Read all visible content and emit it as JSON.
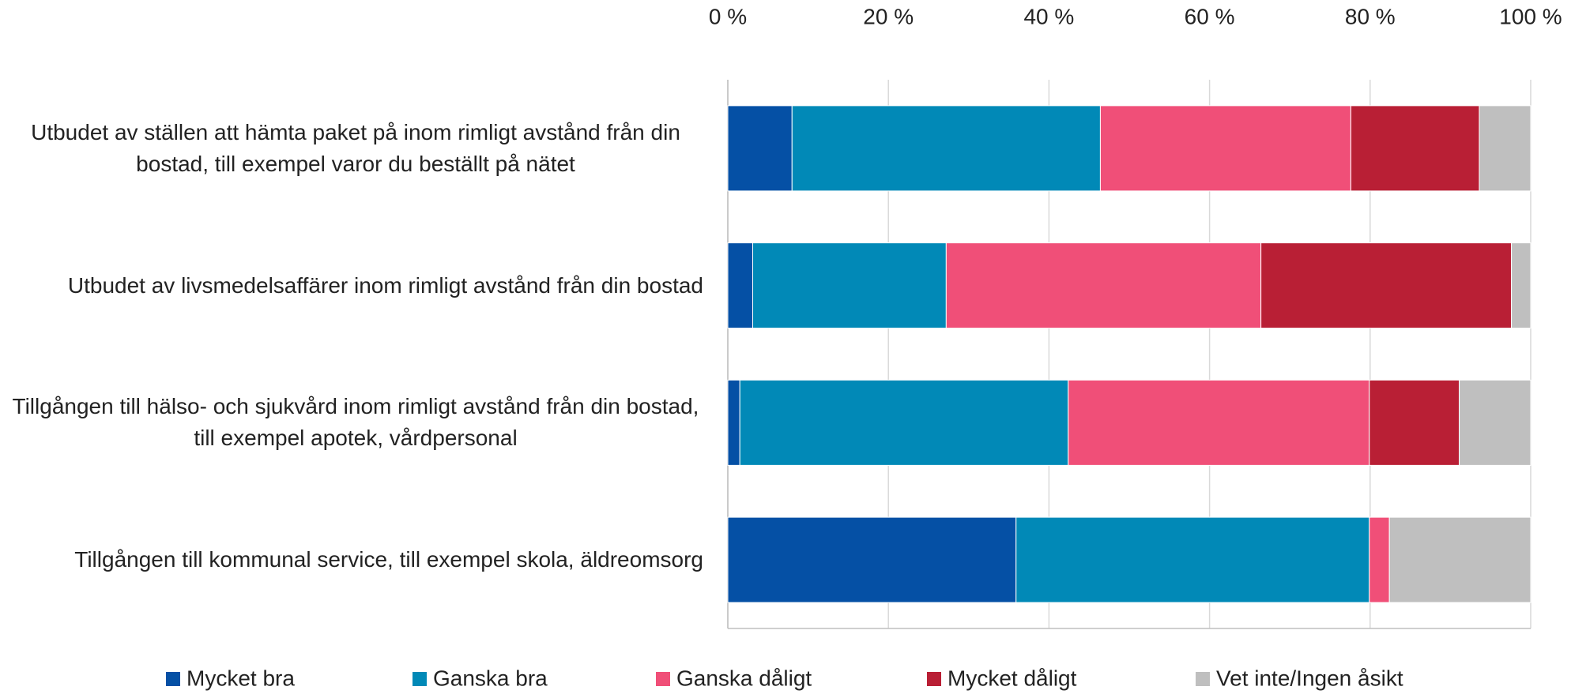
{
  "chart_data": {
    "type": "stacked-barh",
    "categories": [
      "Utbudet av ställen att hämta paket på inom rimligt avstånd från din bostad, till exempel varor du beställt på nätet",
      "Utbudet av livsmedelsaffärer inom rimligt avstånd från din bostad",
      "Tillgången till hälso- och sjukvård inom rimligt avstånd från din bostad, till exempel apotek, vårdpersonal",
      "Tillgången till kommunal service, till exempel skola, äldreomsorg"
    ],
    "series": [
      {
        "name": "Mycket bra",
        "color": "#0550a5",
        "values": [
          8,
          3.1,
          1.5,
          35.9
        ]
      },
      {
        "name": "Ganska bra",
        "color": "#0189b7",
        "values": [
          38.4,
          24.1,
          40.9,
          44.0
        ]
      },
      {
        "name": "Ganska dåligt",
        "color": "#f04f78",
        "values": [
          31.2,
          39.2,
          37.5,
          2.5
        ]
      },
      {
        "name": "Mycket dåligt",
        "color": "#b91f35",
        "values": [
          16.0,
          31.2,
          11.2,
          0
        ]
      },
      {
        "name": "Vet inte/Ingen åsikt",
        "color": "#bfbfbf",
        "values": [
          6.4,
          2.4,
          8.9,
          17.6
        ]
      }
    ],
    "xlim": [
      0,
      100
    ],
    "xticks": [
      {
        "value": 0,
        "label": "0 %"
      },
      {
        "value": 20,
        "label": "20 %"
      },
      {
        "value": 40,
        "label": "40 %"
      },
      {
        "value": 60,
        "label": "60 %"
      },
      {
        "value": 80,
        "label": "80 %"
      },
      {
        "value": 100,
        "label": "100 %"
      }
    ],
    "grid": true,
    "legend": "bottom"
  }
}
